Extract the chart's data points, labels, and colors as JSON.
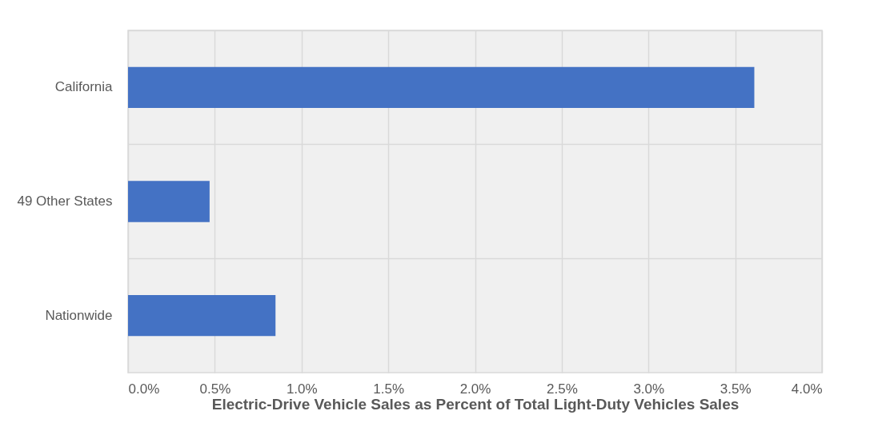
{
  "chart_data": {
    "type": "bar",
    "orientation": "horizontal",
    "xlabel": "Electric-Drive Vehicle Sales as Percent of Total Light-Duty Vehicles Sales",
    "categories": [
      "California",
      "49 Other States",
      "Nationwide"
    ],
    "values": [
      3.61,
      0.47,
      0.85
    ],
    "color": "#4472c4",
    "xlim": [
      0,
      4
    ],
    "xticks": [
      {
        "value": 0,
        "label": "0.0%"
      },
      {
        "value": 0.5,
        "label": "0.5%"
      },
      {
        "value": 1,
        "label": "1.0%"
      },
      {
        "value": 1.5,
        "label": "1.5%"
      },
      {
        "value": 2,
        "label": "2.0%"
      },
      {
        "value": 2.5,
        "label": "2.5%"
      },
      {
        "value": 3,
        "label": "3.0%"
      },
      {
        "value": 3.5,
        "label": "3.5%"
      },
      {
        "value": 4,
        "label": "4.0%"
      }
    ],
    "grid": true
  }
}
